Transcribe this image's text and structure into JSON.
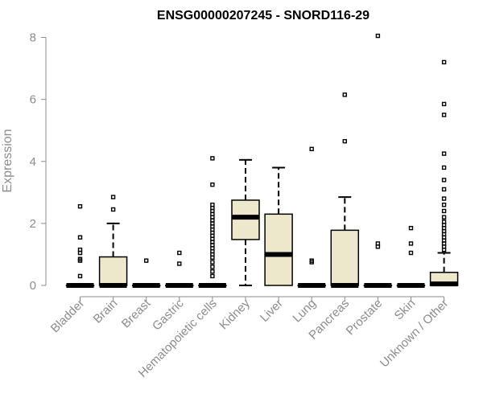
{
  "chart_data": {
    "type": "boxplot",
    "title": "ENSG00000207245 - SNORD116-29",
    "ylabel": "Expression",
    "xlabel": "",
    "ylim": [
      0,
      8
    ],
    "yticks": [
      0,
      2,
      4,
      6,
      8
    ],
    "grid": false,
    "legend": "none",
    "box_color": "#ede7cc",
    "categories": [
      "Bladder",
      "Brain",
      "Breast",
      "Gastric",
      "Hematopoietic cells",
      "Kidney",
      "Liver",
      "Lung",
      "Pancreas",
      "Prostate",
      "Skin",
      "Unknown / Other"
    ],
    "boxes": [
      {
        "min": 0,
        "q1": 0,
        "median": 0,
        "q3": 0,
        "max": 0,
        "outliers": [
          0.3,
          0.8,
          0.85,
          1.05,
          1.15,
          1.55,
          2.55
        ]
      },
      {
        "min": 0,
        "q1": 0,
        "median": 0,
        "q3": 0.92,
        "max": 2.0,
        "outliers": [
          2.45,
          2.85
        ]
      },
      {
        "min": 0,
        "q1": 0,
        "median": 0,
        "q3": 0,
        "max": 0,
        "outliers": [
          0.8
        ]
      },
      {
        "min": 0,
        "q1": 0,
        "median": 0,
        "q3": 0,
        "max": 0,
        "outliers": [
          0.7,
          1.05
        ]
      },
      {
        "min": 0,
        "q1": 0,
        "median": 0,
        "q3": 0,
        "max": 0,
        "outliers": [
          0.3,
          0.45,
          0.6,
          0.75,
          0.9,
          1.0,
          1.1,
          1.2,
          1.3,
          1.4,
          1.5,
          1.6,
          1.7,
          1.8,
          1.9,
          2.0,
          2.1,
          2.2,
          2.3,
          2.4,
          2.5,
          2.6,
          3.25,
          4.1
        ]
      },
      {
        "min": 0,
        "q1": 1.48,
        "median": 2.2,
        "q3": 2.75,
        "max": 4.05,
        "outliers": []
      },
      {
        "min": 0,
        "q1": 0,
        "median": 1.0,
        "q3": 2.3,
        "max": 3.8,
        "outliers": []
      },
      {
        "min": 0,
        "q1": 0,
        "median": 0,
        "q3": 0,
        "max": 0,
        "outliers": [
          0.75,
          0.8,
          4.4
        ]
      },
      {
        "min": 0,
        "q1": 0,
        "median": 0,
        "q3": 1.78,
        "max": 2.85,
        "outliers": [
          4.65,
          6.15
        ]
      },
      {
        "min": 0,
        "q1": 0,
        "median": 0,
        "q3": 0,
        "max": 0,
        "outliers": [
          1.25,
          1.35,
          8.05
        ]
      },
      {
        "min": 0,
        "q1": 0,
        "median": 0,
        "q3": 0,
        "max": 0,
        "outliers": [
          1.05,
          1.35,
          1.85
        ]
      },
      {
        "min": 0,
        "q1": 0,
        "median": 0.05,
        "q3": 0.42,
        "max": 1.05,
        "outliers": [
          1.15,
          1.25,
          1.35,
          1.45,
          1.55,
          1.65,
          1.75,
          1.85,
          1.95,
          2.05,
          2.2,
          2.4,
          2.6,
          2.8,
          3.1,
          3.4,
          3.8,
          4.25,
          5.5,
          5.85,
          7.2
        ]
      }
    ]
  }
}
